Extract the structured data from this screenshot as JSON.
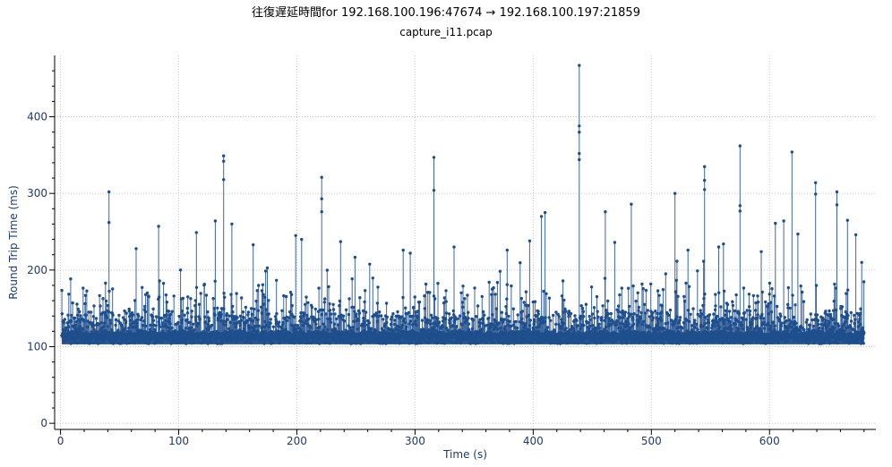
{
  "chart_data": {
    "type": "scatter",
    "title": "往復遅延時間for 192.168.100.196:47674 → 192.168.100.197:21859",
    "subtitle": "capture_i11.pcap",
    "xlabel": "Time (s)",
    "ylabel": "Round Trip Time (ms)",
    "xlim": [
      -5,
      690
    ],
    "ylim": [
      -8,
      480
    ],
    "x_ticks": [
      0,
      100,
      200,
      300,
      400,
      500,
      600
    ],
    "y_ticks": [
      0,
      100,
      200,
      300,
      400
    ],
    "grid": true,
    "legend": "none",
    "style": "impulse-with-points",
    "baseline_ms": 110,
    "x_range_data": [
      1,
      680
    ],
    "color": "#1f4e8c",
    "peaks": [
      {
        "x": 41,
        "y": 302
      },
      {
        "x": 41,
        "y": 262
      },
      {
        "x": 64,
        "y": 228
      },
      {
        "x": 83,
        "y": 257
      },
      {
        "x": 115,
        "y": 249
      },
      {
        "x": 131,
        "y": 264
      },
      {
        "x": 138,
        "y": 349
      },
      {
        "x": 138,
        "y": 342
      },
      {
        "x": 138,
        "y": 318
      },
      {
        "x": 145,
        "y": 260
      },
      {
        "x": 163,
        "y": 233
      },
      {
        "x": 199,
        "y": 245
      },
      {
        "x": 204,
        "y": 240
      },
      {
        "x": 221,
        "y": 321
      },
      {
        "x": 221,
        "y": 293
      },
      {
        "x": 221,
        "y": 276
      },
      {
        "x": 237,
        "y": 237
      },
      {
        "x": 290,
        "y": 226
      },
      {
        "x": 296,
        "y": 222
      },
      {
        "x": 316,
        "y": 347
      },
      {
        "x": 316,
        "y": 304
      },
      {
        "x": 333,
        "y": 230
      },
      {
        "x": 378,
        "y": 226
      },
      {
        "x": 397,
        "y": 238
      },
      {
        "x": 407,
        "y": 270
      },
      {
        "x": 410,
        "y": 275
      },
      {
        "x": 439,
        "y": 467
      },
      {
        "x": 439,
        "y": 388
      },
      {
        "x": 439,
        "y": 380
      },
      {
        "x": 439,
        "y": 352
      },
      {
        "x": 439,
        "y": 344
      },
      {
        "x": 461,
        "y": 276
      },
      {
        "x": 469,
        "y": 236
      },
      {
        "x": 483,
        "y": 286
      },
      {
        "x": 520,
        "y": 300
      },
      {
        "x": 531,
        "y": 226
      },
      {
        "x": 545,
        "y": 335
      },
      {
        "x": 545,
        "y": 317
      },
      {
        "x": 545,
        "y": 305
      },
      {
        "x": 557,
        "y": 230
      },
      {
        "x": 561,
        "y": 234
      },
      {
        "x": 575,
        "y": 362
      },
      {
        "x": 575,
        "y": 284
      },
      {
        "x": 575,
        "y": 277
      },
      {
        "x": 593,
        "y": 224
      },
      {
        "x": 605,
        "y": 261
      },
      {
        "x": 612,
        "y": 264
      },
      {
        "x": 619,
        "y": 354
      },
      {
        "x": 624,
        "y": 247
      },
      {
        "x": 639,
        "y": 314
      },
      {
        "x": 639,
        "y": 299
      },
      {
        "x": 657,
        "y": 302
      },
      {
        "x": 657,
        "y": 285
      },
      {
        "x": 666,
        "y": 265
      },
      {
        "x": 673,
        "y": 246
      },
      {
        "x": 678,
        "y": 210
      }
    ]
  }
}
